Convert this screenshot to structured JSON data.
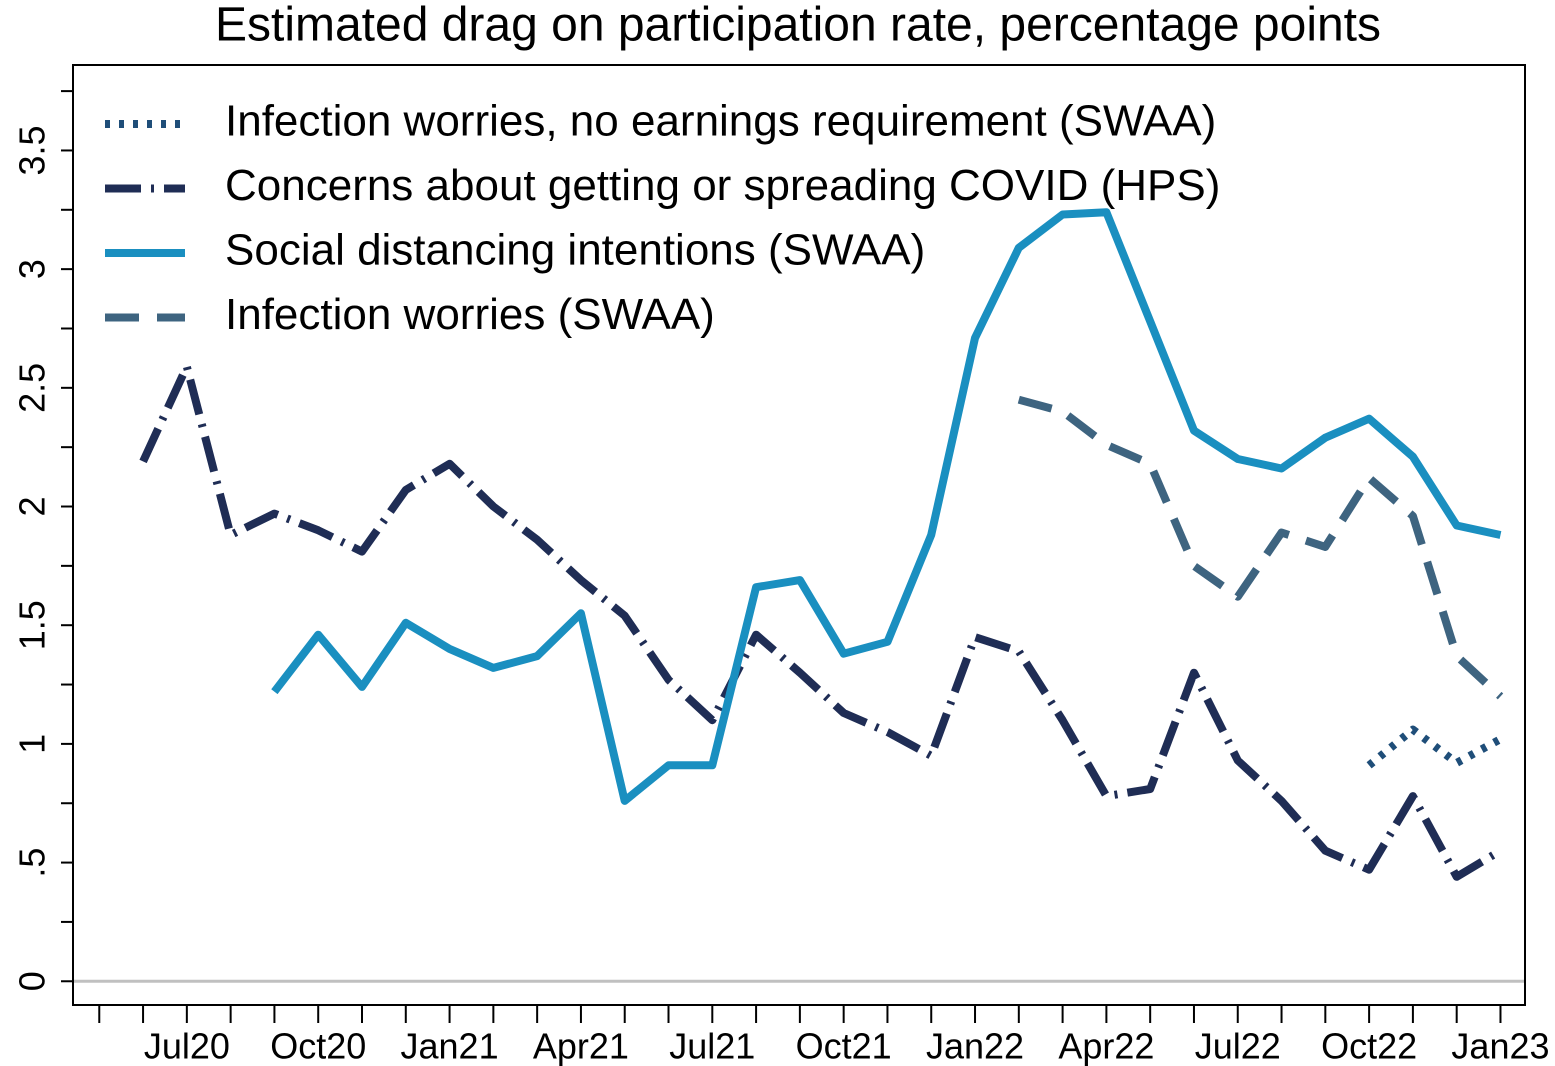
{
  "chart_data": {
    "type": "line",
    "title": "Estimated drag on participation rate, percentage points",
    "categories": [
      null,
      null,
      "Jul20",
      null,
      null,
      "Oct20",
      null,
      null,
      "Jan21",
      null,
      null,
      "Apr21",
      null,
      null,
      "Jul21",
      null,
      null,
      "Oct21",
      null,
      null,
      "Jan22",
      null,
      null,
      "Apr22",
      null,
      null,
      "Jul22",
      null,
      null,
      "Oct22",
      null,
      null,
      "Jan23"
    ],
    "series": [
      {
        "name": "Infection worries, no earnings requirement (SWAA)",
        "color": "#1f4e79",
        "style": "dotted",
        "values": [
          null,
          null,
          null,
          null,
          null,
          null,
          null,
          null,
          null,
          null,
          null,
          null,
          null,
          null,
          null,
          null,
          null,
          null,
          null,
          null,
          null,
          null,
          null,
          null,
          null,
          null,
          null,
          null,
          null,
          0.91,
          1.06,
          0.92,
          1.02
        ]
      },
      {
        "name": "Concerns about getting or spreading COVID (HPS)",
        "color": "#1f2d55",
        "style": "dashdot",
        "values": [
          null,
          2.19,
          2.59,
          1.88,
          1.97,
          1.9,
          1.81,
          2.07,
          2.18,
          2.0,
          1.86,
          1.69,
          1.54,
          1.27,
          1.1,
          1.46,
          1.3,
          1.13,
          1.05,
          0.95,
          1.45,
          1.39,
          1.1,
          0.78,
          0.81,
          1.3,
          0.93,
          0.76,
          0.55,
          0.47,
          0.78,
          0.44,
          0.55
        ]
      },
      {
        "name": "Social distancing intentions (SWAA)",
        "color": "#1a8fc0",
        "style": "solid",
        "values": [
          null,
          null,
          null,
          null,
          1.22,
          1.46,
          1.24,
          1.51,
          1.4,
          1.32,
          1.37,
          1.55,
          0.76,
          0.91,
          0.91,
          1.66,
          1.69,
          1.38,
          1.43,
          1.88,
          2.71,
          3.09,
          3.23,
          3.24,
          2.78,
          2.32,
          2.2,
          2.16,
          2.29,
          2.37,
          2.21,
          1.92,
          1.88
        ]
      },
      {
        "name": "Infection worries (SWAA)",
        "color": "#3e6480",
        "style": "dashed",
        "values": [
          null,
          null,
          null,
          null,
          null,
          null,
          null,
          null,
          null,
          null,
          null,
          null,
          null,
          null,
          null,
          null,
          null,
          null,
          null,
          null,
          null,
          2.45,
          2.4,
          2.26,
          2.18,
          1.75,
          1.62,
          1.89,
          1.83,
          2.12,
          1.96,
          1.37,
          1.2
        ]
      }
    ],
    "ylim": [
      -0.1,
      3.86
    ],
    "yticks": [
      0,
      {
        "value": 0.5,
        "label": ".5"
      },
      1,
      1.5,
      2,
      2.5,
      3,
      3.5
    ],
    "yminorticks": [
      0.25,
      0.75,
      1.25,
      1.75,
      2.25,
      2.75,
      3.25,
      3.75
    ],
    "hlines": [
      0
    ],
    "legend": "top-left"
  }
}
